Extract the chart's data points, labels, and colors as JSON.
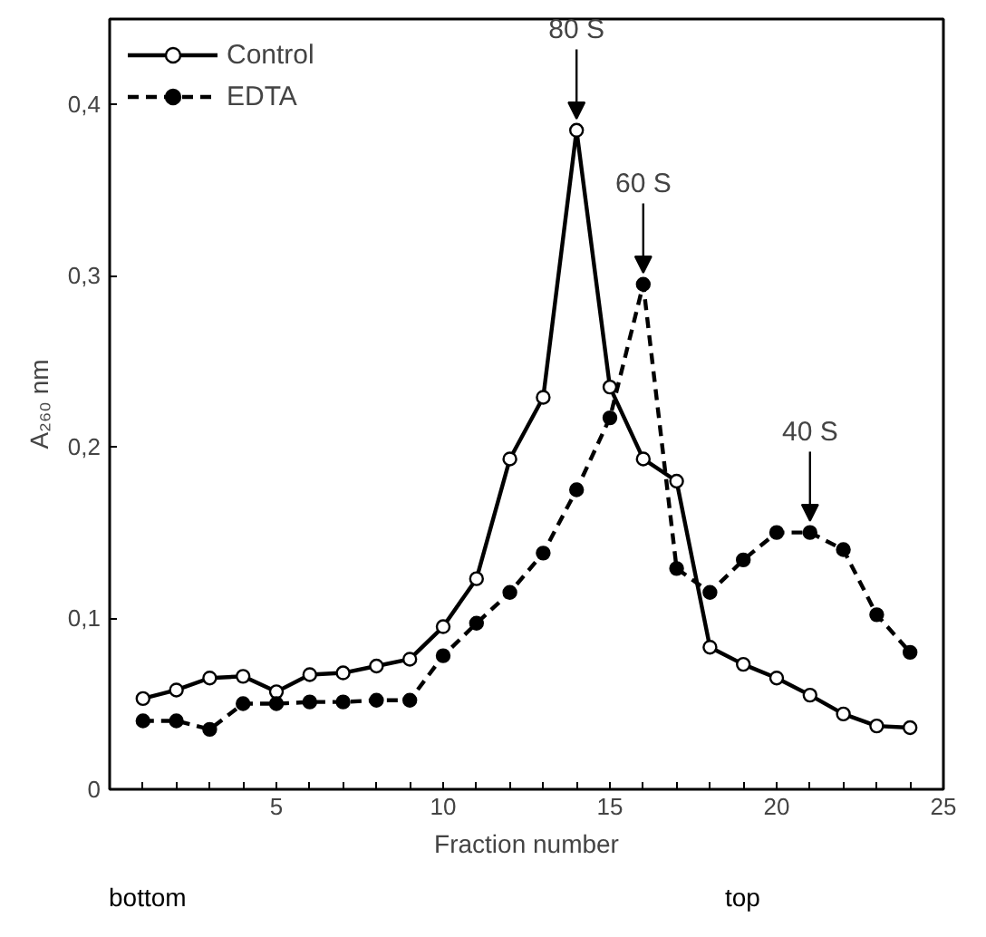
{
  "chart_data": {
    "type": "line",
    "xlabel": "Fraction number",
    "ylabel": "A₂₆₀ nm",
    "x": [
      1,
      2,
      3,
      4,
      5,
      6,
      7,
      8,
      9,
      10,
      11,
      12,
      13,
      14,
      15,
      16,
      17,
      18,
      19,
      20,
      21,
      22,
      23,
      24
    ],
    "series": [
      {
        "name": "Control",
        "color": "#000000",
        "line_style": "solid",
        "values": [
          0.053,
          0.058,
          0.065,
          0.066,
          0.057,
          0.067,
          0.068,
          0.072,
          0.076,
          0.095,
          0.123,
          0.193,
          0.229,
          0.385,
          0.235,
          0.193,
          0.18,
          0.083,
          0.073,
          0.065,
          0.055,
          0.044,
          0.037,
          0.036
        ]
      },
      {
        "name": "EDTA",
        "color": "#000000",
        "line_style": "dashed",
        "values": [
          0.04,
          0.04,
          0.035,
          0.05,
          0.05,
          0.051,
          0.051,
          0.052,
          0.052,
          0.078,
          0.097,
          0.115,
          0.138,
          0.175,
          0.217,
          0.295,
          0.129,
          0.115,
          0.134,
          0.15,
          0.15,
          0.14,
          0.102,
          0.08
        ]
      }
    ],
    "xlim": [
      0,
      25
    ],
    "ylim": [
      0,
      0.45
    ],
    "xticks": [
      {
        "value": 1,
        "label": null
      },
      {
        "value": 2,
        "label": null
      },
      {
        "value": 3,
        "label": null
      },
      {
        "value": 4,
        "label": null
      },
      5,
      {
        "value": 6,
        "label": null
      },
      {
        "value": 7,
        "label": null
      },
      {
        "value": 8,
        "label": null
      },
      {
        "value": 9,
        "label": null
      },
      10,
      {
        "value": 11,
        "label": null
      },
      {
        "value": 12,
        "label": null
      },
      {
        "value": 13,
        "label": null
      },
      {
        "value": 14,
        "label": null
      },
      15,
      {
        "value": 16,
        "label": null
      },
      {
        "value": 17,
        "label": null
      },
      {
        "value": 18,
        "label": null
      },
      {
        "value": 19,
        "label": null
      },
      20,
      {
        "value": 21,
        "label": null
      },
      {
        "value": 22,
        "label": null
      },
      {
        "value": 23,
        "label": null
      },
      {
        "value": 24,
        "label": null
      },
      25
    ],
    "yticks": [
      0,
      {
        "value": 0.1,
        "label": "0,1"
      },
      {
        "value": 0.2,
        "label": "0,2"
      },
      {
        "value": 0.3,
        "label": "0,3"
      },
      {
        "value": 0.4,
        "label": "0,4"
      }
    ],
    "annotations": [
      {
        "text": "80 S",
        "x": 14,
        "y": 0.385
      },
      {
        "text": "60 S",
        "x": 16,
        "y": 0.295
      },
      {
        "text": "40 S",
        "x": 21,
        "y": 0.15
      },
      "bottom",
      "top"
    ],
    "marker": "circle",
    "legend": "top left",
    "grid": false
  }
}
